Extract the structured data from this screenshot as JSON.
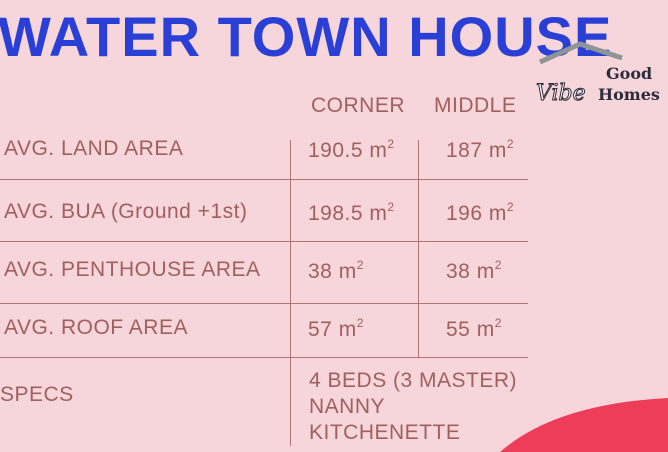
{
  "title": "WATER TOWN HOUSE",
  "logo": {
    "word1": "Good",
    "word2": "Vibe",
    "word3": "Homes"
  },
  "columns": [
    "CORNER",
    "MIDDLE"
  ],
  "rows": [
    {
      "label": "AVG. LAND AREA",
      "corner": "190.5 m",
      "middle": "187 m"
    },
    {
      "label": "AVG. BUA (Ground +1st)",
      "corner": "198.5 m",
      "middle": "196 m"
    },
    {
      "label": "AVG. PENTHOUSE AREA",
      "corner": "38 m",
      "middle": "38 m"
    },
    {
      "label": "AVG. ROOF AREA",
      "corner": "57 m",
      "middle": "55 m"
    }
  ],
  "unit_sup": "2",
  "specs": {
    "label": "SPECS",
    "lines": [
      "4 BEDS (3 MASTER)",
      "NANNY",
      "KITCHENETTE"
    ]
  },
  "colors": {
    "title": "#2a3fd6",
    "background": "#f6d5db",
    "text": "#a0605e",
    "accent": "#ee3d58"
  }
}
